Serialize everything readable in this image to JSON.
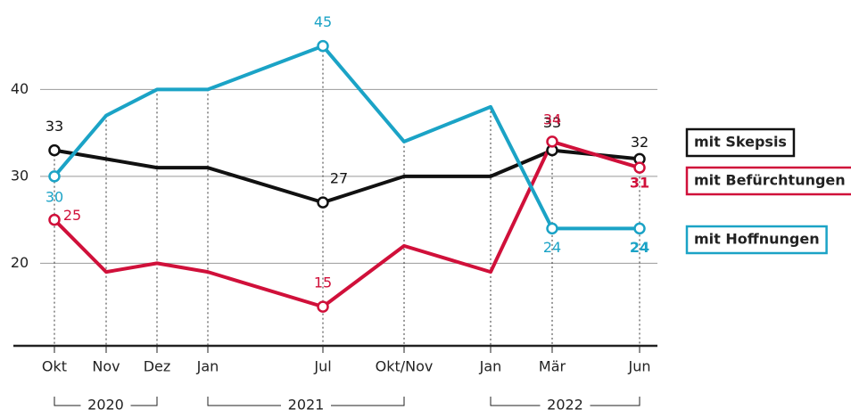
{
  "chart_data": {
    "type": "line",
    "categories": [
      "Okt",
      "Nov",
      "Dez",
      "Jan",
      "Jul",
      "Okt/Nov",
      "Jan",
      "Mär",
      "Jun"
    ],
    "periods": [
      "2020",
      "2021",
      "2022"
    ],
    "series": [
      {
        "name": "mit Skepsis",
        "color": "#111111",
        "values": [
          33,
          32,
          31,
          31,
          27,
          30,
          30,
          33,
          32
        ]
      },
      {
        "name": "mit Befürchtungen",
        "color": "#d0103a",
        "values": [
          25,
          19,
          20,
          19,
          15,
          22,
          19,
          34,
          31
        ]
      },
      {
        "name": "mit Hoffnungen",
        "color": "#1ba3c6",
        "values": [
          30,
          37,
          40,
          40,
          45,
          34,
          38,
          24,
          24
        ]
      }
    ],
    "ylim": [
      10.5,
      50.3
    ],
    "yticks": [
      20,
      30,
      40
    ],
    "grid": true
  }
}
